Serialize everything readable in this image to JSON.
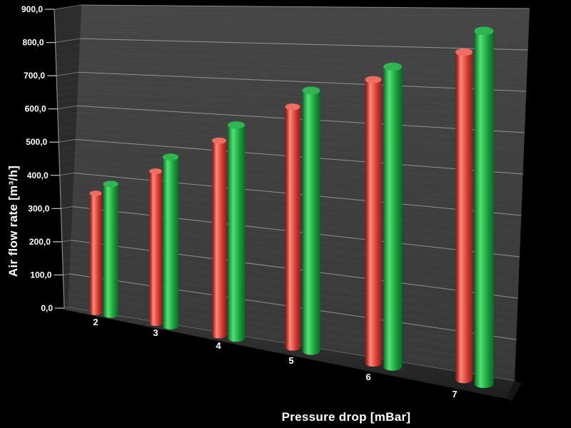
{
  "window": {
    "background": "#000000"
  },
  "chart_data": {
    "type": "bar",
    "style": "3d-cylinder-columns",
    "title": "",
    "xlabel": "Pressure drop [mBar]",
    "ylabel": "Air flow rate [m³/h]",
    "categories": [
      "2",
      "3",
      "4",
      "5",
      "6",
      "7"
    ],
    "series": [
      {
        "name": "red",
        "color": "#e64b40",
        "values": [
          350,
          420,
          510,
          600,
          685,
          770
        ]
      },
      {
        "name": "green",
        "color": "#2db84e",
        "values": [
          375,
          460,
          550,
          645,
          720,
          830
        ]
      }
    ],
    "ylim": [
      0,
      900
    ],
    "ytick_step": 100,
    "ytick_labels": [
      "0,0",
      "100,0",
      "200,0",
      "300,0",
      "400,0",
      "500,0",
      "600,0",
      "700,0",
      "800,0",
      "900,0"
    ],
    "minor_grid_step": 20,
    "grid": "horizontal major+minor on back wall",
    "legend_position": "none",
    "colors": {
      "background": "#000000",
      "wall": "#3d3d3d",
      "left_wall": "#2c2c2c",
      "floor": "#2e2e2e",
      "major_gridline": "#c8c8c8",
      "minor_gridline": "#5a5a5a",
      "axis_text": "#ffffff"
    }
  }
}
